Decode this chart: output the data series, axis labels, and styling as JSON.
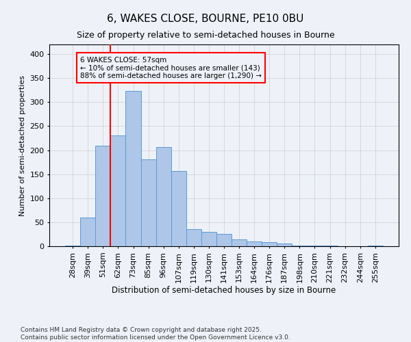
{
  "title": "6, WAKES CLOSE, BOURNE, PE10 0BU",
  "subtitle": "Size of property relative to semi-detached houses in Bourne",
  "xlabel": "Distribution of semi-detached houses by size in Bourne",
  "ylabel": "Number of semi-detached properties",
  "footnote1": "Contains HM Land Registry data © Crown copyright and database right 2025.",
  "footnote2": "Contains public sector information licensed under the Open Government Licence v3.0.",
  "categories": [
    "28sqm",
    "39sqm",
    "51sqm",
    "62sqm",
    "73sqm",
    "85sqm",
    "96sqm",
    "107sqm",
    "119sqm",
    "130sqm",
    "141sqm",
    "153sqm",
    "164sqm",
    "176sqm",
    "187sqm",
    "198sqm",
    "210sqm",
    "221sqm",
    "232sqm",
    "244sqm",
    "255sqm"
  ],
  "values": [
    2,
    60,
    210,
    230,
    323,
    181,
    207,
    157,
    35,
    30,
    25,
    14,
    10,
    9,
    5,
    2,
    1,
    1,
    0,
    0,
    2
  ],
  "bar_color": "#aec6e8",
  "bar_edge_color": "#5b9bd5",
  "grid_color": "#cccccc",
  "vline_color": "red",
  "annotation_text": "6 WAKES CLOSE: 57sqm\n← 10% of semi-detached houses are smaller (143)\n88% of semi-detached houses are larger (1,290) →",
  "annotation_box_color": "red",
  "ylim": [
    0,
    420
  ],
  "yticks": [
    0,
    50,
    100,
    150,
    200,
    250,
    300,
    350,
    400
  ],
  "background_color": "#eef2f8",
  "title_fontsize": 11,
  "subtitle_fontsize": 9,
  "footnote_fontsize": 6.5
}
